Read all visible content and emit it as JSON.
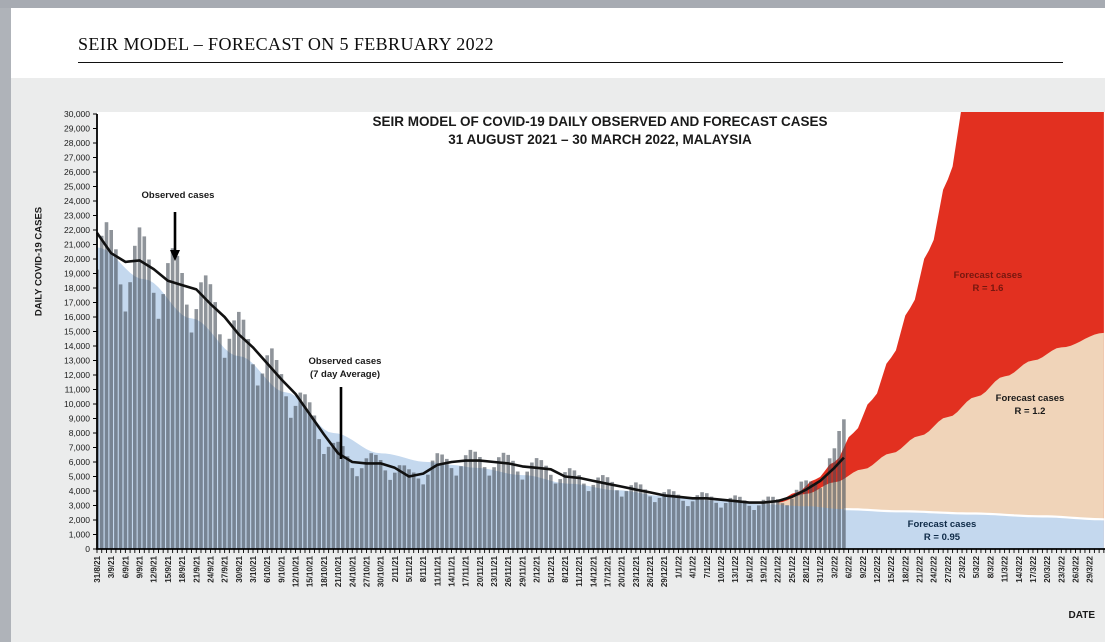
{
  "window": {
    "header_title": "SEIR MODEL – FORECAST ON 5 FEBRUARY 2022"
  },
  "chart": {
    "title_line1": "SEIR MODEL OF COVID-19 DAILY OBSERVED AND FORECAST CASES",
    "title_line2": "31 AUGUST 2021 – 30 MARCH 2022, MALAYSIA",
    "y_axis_title": "DAILY COVID-19 CASES",
    "x_axis_title": "DATE",
    "annotations": {
      "observed": "Observed cases",
      "observed_avg_line1": "Observed cases",
      "observed_avg_line2": "(7 day Average)",
      "forecast_r16_line1": "Forecast cases",
      "forecast_r16_line2": "R = 1.6",
      "forecast_r12_line1": "Forecast cases",
      "forecast_r12_line2": "R = 1.2",
      "forecast_r095_line1": "Forecast cases",
      "forecast_r095_line2": "R = 0.95"
    },
    "colors": {
      "forecast_r16_fill": "#e23020",
      "forecast_r16_label": "#76170f",
      "forecast_r12_fill": "#f0d4b9",
      "forecast_r12_label": "#1a1a1a",
      "forecast_r095_fill": "#c4d8ee",
      "forecast_r095_label": "#0e2a47",
      "observed_bar_fill": "rgba(68,76,86,0.6)",
      "avg_line": "#111111",
      "panel_bg": "#ebecec",
      "plot_bg": "#ffffff",
      "axis": "#000000"
    }
  },
  "chart_data": {
    "type": "composite: observed daily bars + 7-day average line + SEIR forecast area bands",
    "x_unit": "days since 31/8/21 (chart spans 31 Aug 2021 - 30 Mar 2022)",
    "ylim": [
      0,
      30000
    ],
    "y_tick_step": 1000,
    "y_tick_labels": [
      "0",
      "1,000",
      "2,000",
      "3,000",
      "4,000",
      "5,000",
      "6,000",
      "7,000",
      "8,000",
      "9,000",
      "10,000",
      "11,000",
      "12,000",
      "13,000",
      "14,000",
      "15,000",
      "16,000",
      "17,000",
      "18,000",
      "19,000",
      "20,000",
      "21,000",
      "22,000",
      "23,000",
      "24,000",
      "25,000",
      "26,000",
      "27,000",
      "28,000",
      "29,000",
      "30,000"
    ],
    "x_tick_interval_days": 3,
    "x_tick_labels": [
      "31/8/21",
      "3/9/21",
      "6/9/21",
      "9/9/21",
      "12/9/21",
      "15/9/21",
      "18/9/21",
      "21/9/21",
      "24/9/21",
      "27/9/21",
      "30/9/21",
      "3/10/21",
      "6/10/21",
      "9/10/21",
      "12/10/21",
      "15/10/21",
      "18/10/21",
      "21/10/21",
      "24/10/21",
      "27/10/21",
      "30/10/21",
      "2/11/21",
      "5/11/21",
      "8/11/21",
      "11/11/21",
      "14/11/21",
      "17/11/21",
      "20/11/21",
      "23/11/21",
      "26/11/21",
      "29/11/21",
      "2/12/21",
      "5/12/21",
      "8/12/21",
      "11/12/21",
      "14/12/21",
      "17/12/21",
      "20/12/21",
      "23/12/21",
      "26/12/21",
      "29/12/21",
      "1/1/22",
      "4/1/22",
      "7/1/22",
      "10/1/22",
      "13/1/22",
      "16/1/22",
      "19/1/22",
      "22/1/22",
      "25/1/22",
      "28/1/22",
      "31/1/22",
      "3/2/22",
      "6/2/22",
      "9/2/22",
      "12/2/22",
      "15/2/22",
      "18/2/22",
      "21/2/22",
      "24/2/22",
      "27/2/22",
      "2/3/22",
      "5/3/22",
      "8/3/22",
      "11/3/22",
      "14/3/22",
      "17/3/22",
      "20/3/22",
      "23/3/22",
      "26/3/22",
      "29/3/22"
    ],
    "series": [
      {
        "name": "Observed cases (7 day Average)",
        "type": "line",
        "note": "values estimated from pixels, cases; points at 3-day ticks, observed period ends 5/2/22",
        "d": [
          0,
          3,
          6,
          9,
          12,
          15,
          18,
          21,
          24,
          27,
          30,
          33,
          36,
          39,
          42,
          45,
          48,
          51,
          54,
          57,
          60,
          63,
          66,
          69,
          72,
          75,
          78,
          81,
          84,
          87,
          90,
          93,
          96,
          99,
          102,
          105,
          108,
          111,
          114,
          117,
          120,
          123,
          126,
          129,
          132,
          135,
          138,
          141,
          144,
          147,
          150,
          153,
          156,
          158
        ],
        "values": [
          21800,
          20400,
          19800,
          19900,
          19300,
          18500,
          18200,
          17900,
          16900,
          16000,
          14800,
          13900,
          12800,
          11700,
          10700,
          9300,
          7900,
          6600,
          6000,
          5900,
          5900,
          5600,
          5000,
          5200,
          5800,
          6000,
          6100,
          6100,
          6000,
          5900,
          5700,
          5600,
          5500,
          5000,
          4900,
          4700,
          4500,
          4300,
          4100,
          3900,
          3700,
          3600,
          3500,
          3500,
          3400,
          3300,
          3200,
          3200,
          3300,
          3600,
          4100,
          4700,
          5600,
          6300
        ]
      },
      {
        "name": "Observed cases (daily bars)",
        "type": "bar",
        "note": "daily bars rendered from 3-day base values modulated by weekly reporting pattern (estimated)",
        "d": [
          0,
          3,
          6,
          9,
          12,
          15,
          18,
          21,
          24,
          27,
          30,
          33,
          36,
          39,
          42,
          45,
          48,
          51,
          54,
          57,
          60,
          63,
          66,
          69,
          72,
          75,
          78,
          81,
          84,
          87,
          90,
          93,
          96,
          99,
          102,
          105,
          108,
          111,
          114,
          117,
          120,
          123,
          126,
          129,
          132,
          135,
          138,
          141,
          144,
          147,
          150,
          153,
          156,
          158
        ],
        "base_values": [
          20500,
          20000,
          19500,
          19800,
          19000,
          18600,
          18300,
          17600,
          16600,
          15700,
          14600,
          13700,
          12600,
          11600,
          10500,
          9200,
          7800,
          6600,
          6000,
          5900,
          5900,
          5600,
          5000,
          5300,
          5900,
          6000,
          6100,
          6100,
          6000,
          5900,
          5700,
          5600,
          5500,
          5000,
          4900,
          4700,
          4500,
          4300,
          4100,
          3900,
          3700,
          3600,
          3500,
          3500,
          3400,
          3300,
          3200,
          3200,
          3300,
          3700,
          4300,
          5000,
          6200,
          8600
        ],
        "weekly_pattern": [
          0.94,
          1.06,
          1.12,
          1.1,
          1.04,
          0.93,
          0.84
        ],
        "last_observed_day": 158
      },
      {
        "name": "SEIR model fit / Forecast cases R = 0.95",
        "type": "area",
        "note": "light blue area spanning whole range; forecast beyond 5/2/22",
        "points": [
          [
            0,
            20800
          ],
          [
            10,
            18600
          ],
          [
            20,
            15900
          ],
          [
            30,
            13300
          ],
          [
            40,
            10800
          ],
          [
            50,
            8000
          ],
          [
            60,
            6600
          ],
          [
            70,
            6000
          ],
          [
            75,
            5800
          ],
          [
            80,
            5600
          ],
          [
            90,
            5100
          ],
          [
            100,
            4500
          ],
          [
            110,
            4050
          ],
          [
            120,
            3650
          ],
          [
            130,
            3350
          ],
          [
            140,
            3100
          ],
          [
            150,
            2950
          ],
          [
            158,
            2750
          ],
          [
            170,
            2600
          ],
          [
            185,
            2450
          ],
          [
            200,
            2250
          ],
          [
            213,
            2050
          ]
        ]
      },
      {
        "name": "Forecast cases R = 1.2",
        "type": "area",
        "points": [
          [
            144,
            3200
          ],
          [
            150,
            3800
          ],
          [
            156,
            4600
          ],
          [
            162,
            5500
          ],
          [
            168,
            6600
          ],
          [
            174,
            7800
          ],
          [
            180,
            9100
          ],
          [
            186,
            10500
          ],
          [
            192,
            11900
          ],
          [
            198,
            13000
          ],
          [
            204,
            13900
          ],
          [
            213,
            14900
          ]
        ]
      },
      {
        "name": "Forecast cases R = 1.6",
        "type": "area",
        "note": "clipped at 30,000 axis top around 1/3/22",
        "points": [
          [
            144,
            3300
          ],
          [
            148,
            3900
          ],
          [
            152,
            4800
          ],
          [
            156,
            6000
          ],
          [
            160,
            8000
          ],
          [
            164,
            10300
          ],
          [
            168,
            13200
          ],
          [
            172,
            16600
          ],
          [
            176,
            20600
          ],
          [
            180,
            25500
          ],
          [
            184,
            31500
          ],
          [
            190,
            44000
          ],
          [
            196,
            60000
          ],
          [
            213,
            150000
          ]
        ]
      }
    ]
  }
}
